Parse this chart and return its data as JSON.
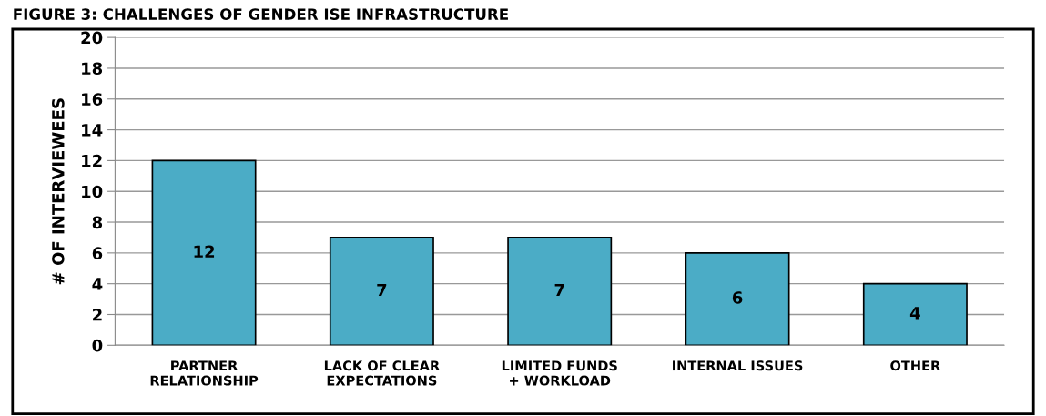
{
  "chart_data": {
    "type": "bar",
    "title": "FIGURE 3: CHALLENGES OF GENDER ISE INFRASTRUCTURE",
    "ylabel": "# OF INTERVIEWEES",
    "categories": [
      "PARTNER\nRELATIONSHIP",
      "LACK OF CLEAR\nEXPECTATIONS",
      "LIMITED FUNDS\n+ WORKLOAD",
      "INTERNAL ISSUES",
      "OTHER"
    ],
    "values": [
      12,
      7,
      7,
      6,
      4
    ],
    "color": "#4bacc6",
    "ylim": [
      0,
      20
    ],
    "yticks": [
      0,
      2,
      4,
      6,
      8,
      10,
      12,
      14,
      16,
      18,
      20
    ],
    "grid": "y",
    "data_labels": true,
    "legend": false
  }
}
